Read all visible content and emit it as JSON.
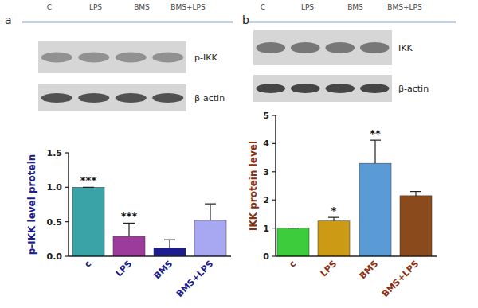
{
  "chart_data": [
    {
      "type": "bar",
      "panel_label": "a",
      "blot_lanes": [
        "C",
        "LPS",
        "BMS",
        "BMS+LPS"
      ],
      "blot_labels": [
        "p-IKK",
        "β-actin"
      ],
      "y_label": "p-IKK level protein",
      "categories": [
        "c",
        "LPS",
        "BMS",
        "BMS+LPS"
      ],
      "values": [
        1.0,
        0.29,
        0.12,
        0.52
      ],
      "errors": [
        0,
        0.19,
        0.12,
        0.24
      ],
      "significance": [
        "***",
        "***",
        null,
        null
      ],
      "colors": [
        "#3aa3a8",
        "#9c3b9c",
        "#1c1c8c",
        "#a8a8f2"
      ],
      "ylim": [
        0,
        1.5
      ],
      "yticks": [
        {
          "value": 0,
          "label": "0.0"
        },
        {
          "value": 0.5,
          "label": "0.5"
        },
        {
          "value": 1.0,
          "label": "1.0"
        },
        {
          "value": 1.5,
          "label": "1.5"
        }
      ]
    },
    {
      "type": "bar",
      "panel_label": "b",
      "blot_lanes": [
        "C",
        "LPS",
        "BMS",
        "BMS+LPS"
      ],
      "blot_labels": [
        "IKK",
        "β-actin"
      ],
      "y_label": "IKK  protein level",
      "categories": [
        "c",
        "LPS",
        "BMS",
        "BMS+LPS"
      ],
      "values": [
        1.0,
        1.25,
        3.3,
        2.15
      ],
      "errors": [
        0,
        0.13,
        0.82,
        0.15
      ],
      "significance": [
        null,
        "*",
        "**",
        null
      ],
      "colors": [
        "#3ccc3c",
        "#cc9a14",
        "#5b9bd5",
        "#8b4a1c"
      ],
      "ylim": [
        0,
        5
      ],
      "yticks": [
        0,
        1,
        2,
        3,
        4,
        5
      ]
    }
  ]
}
